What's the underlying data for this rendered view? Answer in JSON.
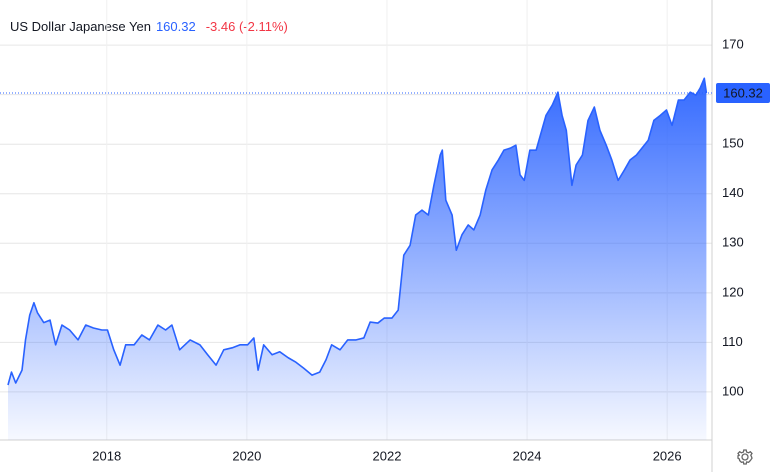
{
  "chart_data": {
    "type": "area",
    "title": "US Dollar Japanese Yen",
    "last_value": 160.32,
    "change": "-3.46 (-2.11%)",
    "color": "#2962ff",
    "change_color": "#f23645",
    "grid": true,
    "xlim": [
      2016.59,
      2026.64
    ],
    "ylim": [
      90.3,
      179.1
    ],
    "xticks": [
      2018,
      2020,
      2022,
      2024,
      2026
    ],
    "yticks": [
      100,
      110,
      120,
      130,
      140,
      150,
      160,
      170
    ],
    "x": [
      2016.59,
      2016.64,
      2016.7,
      2016.79,
      2016.84,
      2016.9,
      2016.96,
      2017.01,
      2017.1,
      2017.19,
      2017.27,
      2017.36,
      2017.47,
      2017.59,
      2017.7,
      2017.81,
      2017.93,
      2018.01,
      2018.1,
      2018.19,
      2018.27,
      2018.39,
      2018.5,
      2018.61,
      2018.73,
      2018.84,
      2018.93,
      2019.04,
      2019.19,
      2019.33,
      2019.44,
      2019.56,
      2019.67,
      2019.79,
      2019.9,
      2020.01,
      2020.1,
      2020.16,
      2020.24,
      2020.36,
      2020.47,
      2020.59,
      2020.7,
      2020.81,
      2020.93,
      2021.04,
      2021.13,
      2021.21,
      2021.33,
      2021.44,
      2021.56,
      2021.67,
      2021.76,
      2021.87,
      2021.96,
      2022.07,
      2022.16,
      2022.24,
      2022.33,
      2022.41,
      2022.5,
      2022.59,
      2022.67,
      2022.76,
      2022.79,
      2022.84,
      2022.93,
      2022.99,
      2023.07,
      2023.16,
      2023.24,
      2023.33,
      2023.41,
      2023.5,
      2023.59,
      2023.67,
      2023.76,
      2023.84,
      2023.9,
      2023.96,
      2024.04,
      2024.13,
      2024.19,
      2024.27,
      2024.36,
      2024.44,
      2024.5,
      2024.56,
      2024.64,
      2024.7,
      2024.79,
      2024.87,
      2024.96,
      2025.04,
      2025.13,
      2025.21,
      2025.3,
      2025.39,
      2025.47,
      2025.56,
      2025.64,
      2025.73,
      2025.81,
      2025.9,
      2025.99,
      2026.07,
      2026.16,
      2026.24,
      2026.33,
      2026.41,
      2026.47,
      2026.53,
      2026.56
    ],
    "values": [
      101.4,
      104,
      101.8,
      104.4,
      110.5,
      115.5,
      118,
      116,
      114,
      114.5,
      109.5,
      113.5,
      112.5,
      110.5,
      113.5,
      112.9,
      112.5,
      112.5,
      108.5,
      105.4,
      109.5,
      109.5,
      111.5,
      110.5,
      113.5,
      112.5,
      113.5,
      108.5,
      110.5,
      109.5,
      107.5,
      105.4,
      108.5,
      108.9,
      109.5,
      109.5,
      110.9,
      104.4,
      109.5,
      107.5,
      108.1,
      106.9,
      106,
      104.8,
      103.4,
      104,
      106.5,
      109.5,
      108.5,
      110.5,
      110.5,
      110.9,
      114.1,
      113.9,
      114.9,
      114.9,
      116.5,
      127.6,
      129.6,
      135.7,
      136.7,
      135.7,
      141.7,
      147.8,
      148.8,
      138.7,
      135.7,
      128.6,
      131.7,
      133.7,
      132.7,
      135.7,
      140.7,
      144.8,
      146.8,
      148.8,
      149.2,
      149.8,
      143.8,
      142.7,
      148.8,
      148.8,
      151.8,
      155.8,
      157.9,
      160.5,
      155.8,
      152.8,
      141.7,
      145.8,
      147.8,
      154.8,
      157.5,
      152.8,
      149.8,
      146.8,
      142.7,
      144.8,
      146.8,
      147.8,
      149.2,
      150.8,
      154.8,
      155.8,
      156.9,
      153.8,
      158.9,
      158.9,
      160.5,
      159.9,
      161.3,
      163.3,
      160.3
    ]
  }
}
